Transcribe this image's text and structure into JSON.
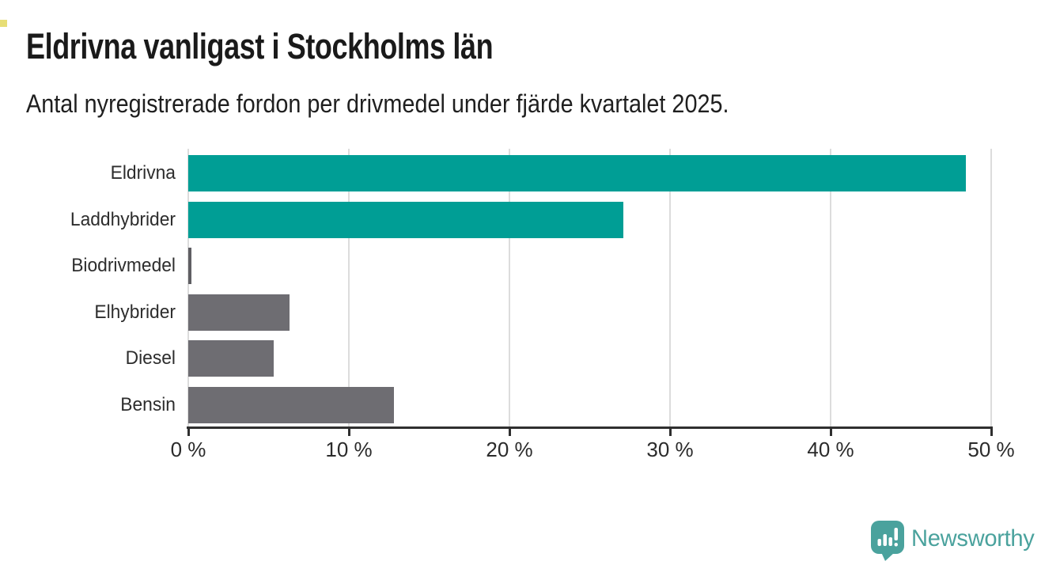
{
  "header": {
    "title": "Eldrivna vanligast i Stockholms län",
    "subtitle": "Antal nyregistrerade fordon per drivmedel under fjärde kvartalet 2025."
  },
  "chart_data": {
    "type": "bar",
    "orientation": "horizontal",
    "title": "Eldrivna vanligast i Stockholms län",
    "subtitle": "Antal nyregistrerade fordon per drivmedel under fjärde kvartalet 2025.",
    "categories": [
      "Eldrivna",
      "Laddhybrider",
      "Biodrivmedel",
      "Elhybrider",
      "Diesel",
      "Bensin"
    ],
    "values": [
      48.4,
      27.1,
      0.2,
      6.3,
      5.3,
      12.8
    ],
    "unit": "%",
    "bar_colors": [
      "#009e95",
      "#009e95",
      "#5f5e63",
      "#6e6d72",
      "#6e6d72",
      "#6e6d72"
    ],
    "xlabel": "",
    "ylabel": "",
    "xlim": [
      0,
      50
    ],
    "x_ticks": [
      "0 %",
      "10 %",
      "20 %",
      "30 %",
      "40 %",
      "50 %"
    ],
    "x_tick_values": [
      0,
      10,
      20,
      30,
      40,
      50
    ],
    "grid": "vertical-gridlines-on",
    "legend": "none"
  },
  "branding": {
    "logo_text": "Newsworthy",
    "logo_icon": "speech-bubble-bar-chart-icon",
    "logo_color": "#4aa29d"
  },
  "colors": {
    "accent_teal": "#009e95",
    "neutral_gray": "#6e6d72",
    "text_dark": "#1a1a1a",
    "axis": "#2f2f2f",
    "gridline": "#dcdcdc",
    "background": "#ffffff",
    "corner_mark_yellow": "#e7de76"
  }
}
